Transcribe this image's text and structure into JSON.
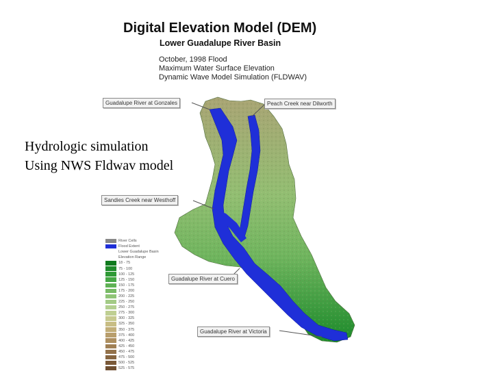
{
  "header": {
    "title": "Digital Elevation Model (DEM)",
    "subtitle": "Lower Guadalupe River Basin",
    "info_lines": [
      "October, 1998 Flood",
      "Maximum Water Surface Elevation",
      "Dynamic Wave Model Simulation (FLDWAV)"
    ]
  },
  "overlay": {
    "line1": "Hydrologic simulation",
    "line2": "Using NWS Fldwav model"
  },
  "callouts": {
    "gonzales": "Guadalupe River at Gonzales",
    "dewitt": "Peach Creek near Dilworth",
    "westhoff": "Sandies Creek near Westhoff",
    "cuero": "Guadalupe River at Cuero",
    "victoria": "Guadalupe River at Victoria"
  },
  "legend": {
    "items": [
      {
        "label": "River Cells",
        "color": "#888888"
      },
      {
        "label": "Flood Extent",
        "color": "#1f2fd8"
      },
      {
        "label": "Lower Guadalupe Basin",
        "color": "#ffffff"
      },
      {
        "label": "Elevation Range",
        "color": "#ffffff"
      },
      {
        "label": "18 - 75",
        "color": "#0f7a1e"
      },
      {
        "label": "75 - 100",
        "color": "#1e8a2a"
      },
      {
        "label": "100 - 125",
        "color": "#2f9a36"
      },
      {
        "label": "125 - 150",
        "color": "#46a845"
      },
      {
        "label": "150 - 175",
        "color": "#5fb255"
      },
      {
        "label": "175 - 200",
        "color": "#78bb66"
      },
      {
        "label": "200 - 225",
        "color": "#8fc477"
      },
      {
        "label": "225 - 250",
        "color": "#a3cb86"
      },
      {
        "label": "250 - 275",
        "color": "#b3cf90"
      },
      {
        "label": "275 - 300",
        "color": "#bfcf92"
      },
      {
        "label": "300 - 325",
        "color": "#c7c98e"
      },
      {
        "label": "325 - 350",
        "color": "#c8bd84"
      },
      {
        "label": "350 - 375",
        "color": "#c2ae78"
      },
      {
        "label": "375 - 400",
        "color": "#b89e6c"
      },
      {
        "label": "400 - 425",
        "color": "#ad8f60"
      },
      {
        "label": "425 - 450",
        "color": "#a08055"
      },
      {
        "label": "450 - 475",
        "color": "#93724b"
      },
      {
        "label": "475 - 500",
        "color": "#866541"
      },
      {
        "label": "500 - 525",
        "color": "#7a5938"
      },
      {
        "label": "525 - 575",
        "color": "#6e4e30"
      }
    ]
  },
  "colors": {
    "flood": "#1f2fd8",
    "basin_low": "#1c8a2c",
    "basin_mid": "#7db868",
    "basin_high": "#a4a070"
  }
}
